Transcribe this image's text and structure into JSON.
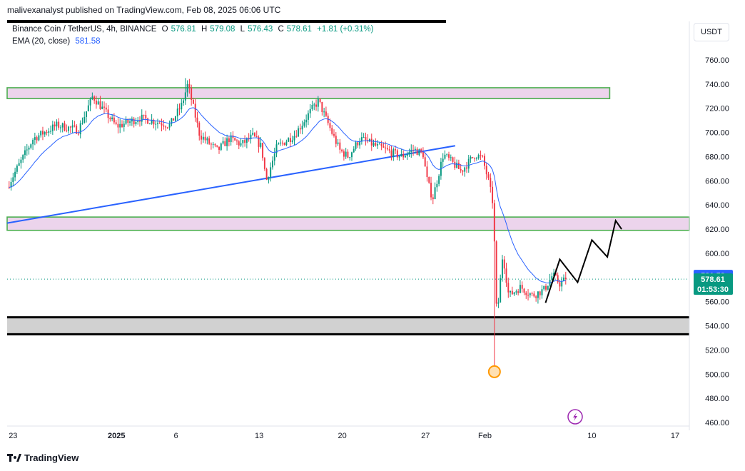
{
  "header": {
    "credit": "malivexanalyst published on TradingView.com, Feb 08, 2025 06:06 UTC"
  },
  "legend": {
    "symbol": "Binance Coin / TetherUS, 4h, BINANCE",
    "open_label": "O",
    "open": "576.81",
    "high_label": "H",
    "high": "579.08",
    "low_label": "L",
    "low": "576.43",
    "close_label": "C",
    "close": "578.61",
    "change": "+1.81 (+0.31%)",
    "ema_label": "EMA (20, close)",
    "ema_value": "581.58"
  },
  "price_scale": {
    "currency": "USDT"
  },
  "price_tags": {
    "ema": "581.58",
    "last": "578.61",
    "countdown": "01:53:30"
  },
  "brand": {
    "name": "TradingView"
  },
  "colors": {
    "up": "#089981",
    "down": "#f23645",
    "ema": "#2962ff",
    "zone_fill": "#ecd4ec",
    "zone_border": "#4caf50",
    "support_fill": "#d1d1d1",
    "trendline": "#2962ff",
    "projection": "#000000"
  },
  "chart_data": {
    "type": "candlestick",
    "title": "Binance Coin / TetherUS, 4h, BINANCE",
    "ylim": [
      450,
      772
    ],
    "y_ticks": [
      "760.00",
      "740.00",
      "720.00",
      "700.00",
      "680.00",
      "660.00",
      "640.00",
      "620.00",
      "600.00",
      "580.00",
      "560.00",
      "540.00",
      "520.00",
      "500.00",
      "480.00",
      "460.00"
    ],
    "x_ticks": [
      "23",
      "2025",
      "6",
      "13",
      "20",
      "27",
      "Feb",
      "10",
      "17"
    ],
    "x_tick_days": [
      -8.7,
      0,
      5,
      12,
      19,
      26,
      31,
      40,
      47
    ],
    "xlim_days": [
      -9.2,
      48.2
    ],
    "candle_path_days": [
      -9.2,
      -7,
      -5,
      -3.2,
      -2,
      0,
      2,
      4.5,
      5.5,
      6,
      7,
      8.5,
      9.5,
      10.5,
      11.5,
      12.2,
      12.6,
      13.5,
      15,
      16.5,
      17,
      18.2,
      18.8,
      19.5,
      20.5,
      22,
      24,
      25,
      25.8,
      26.1,
      26.6,
      27.5,
      29,
      30.2,
      30.8,
      31.3,
      31.7,
      32,
      32.5,
      33,
      34,
      35,
      36,
      36.7,
      37.3,
      37.8
    ],
    "candle_path_prices": [
      655,
      695,
      706,
      702,
      730,
      705,
      712,
      706,
      723,
      740,
      698,
      685,
      695,
      690,
      697,
      688,
      660,
      688,
      698,
      720,
      726,
      698,
      685,
      680,
      695,
      688,
      680,
      686,
      682,
      662,
      645,
      682,
      668,
      682,
      678,
      660,
      640,
      545,
      600,
      565,
      572,
      565,
      570,
      582,
      575,
      578.61
    ],
    "wick_extremes": [
      {
        "day": 5.8,
        "price": 745
      },
      {
        "day": 31.8,
        "price": 500
      }
    ],
    "resistance_zones": [
      {
        "from": 728,
        "to": 737,
        "day_end": 41.5,
        "color": "pink"
      },
      {
        "from": 619,
        "to": 630,
        "day_end": 48.2,
        "color": "pink"
      }
    ],
    "support_zone": {
      "from": 533,
      "to": 547
    },
    "trendline": {
      "points": [
        [
          -9.2,
          625
        ],
        [
          28.5,
          689
        ]
      ]
    },
    "projection_path": {
      "days": [
        36.1,
        37.3,
        38.8,
        40.0,
        41.3,
        42.0,
        42.5
      ],
      "prices": [
        559,
        595,
        576,
        611,
        597,
        627,
        620
      ]
    },
    "lowest_marker": {
      "day": 31.8,
      "price": 502
    },
    "ema_last": 581.58,
    "last_price": 578.61
  }
}
